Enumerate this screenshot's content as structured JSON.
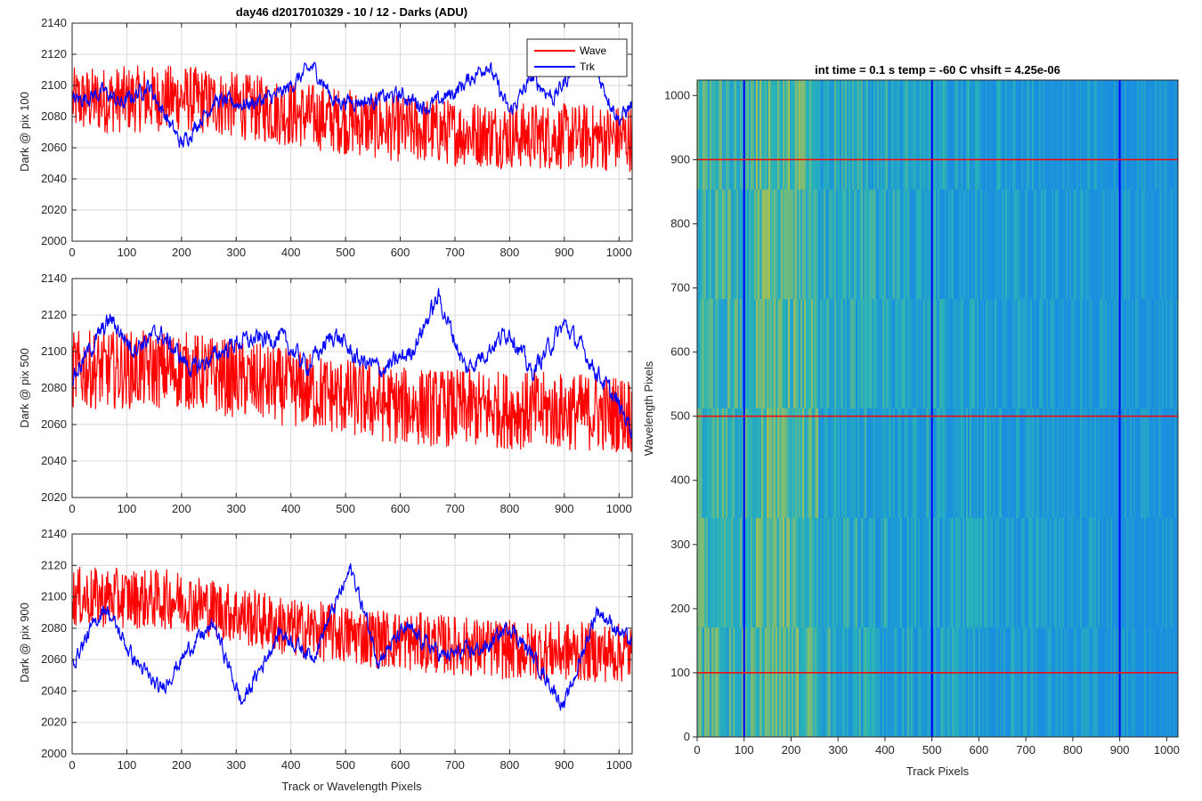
{
  "colors": {
    "wave": "#ff0000",
    "trk": "#0000ff",
    "axis": "#262626",
    "grid": "#d9d9d9",
    "heat_low": "#1a8fe0",
    "heat_mid": "#29b3b8",
    "heat_high": "#c8c23a"
  },
  "chart_data": [
    {
      "type": "line",
      "title": "day46 d2017010329 - 10 / 12 - Darks (ADU)",
      "xlabel": "",
      "ylabel": "Dark @ pix 100",
      "xlim": [
        0,
        1024
      ],
      "ylim": [
        2000,
        2140
      ],
      "xticks": [
        0,
        100,
        200,
        300,
        400,
        500,
        600,
        700,
        800,
        900,
        1000
      ],
      "yticks": [
        2000,
        2020,
        2040,
        2060,
        2080,
        2100,
        2120,
        2140
      ],
      "grid": true,
      "legend": {
        "placement": "top-right",
        "entries": [
          "Wave",
          "Trk"
        ]
      },
      "series": [
        {
          "name": "Wave",
          "color": "#ff0000",
          "noise": 18,
          "trend": [
            [
              0,
              2090
            ],
            [
              200,
              2092
            ],
            [
              400,
              2082
            ],
            [
              600,
              2072
            ],
            [
              800,
              2068
            ],
            [
              1024,
              2066
            ]
          ]
        },
        {
          "name": "Trk",
          "color": "#0000ff",
          "noise": 4,
          "trend": [
            [
              0,
              2090
            ],
            [
              60,
              2096
            ],
            [
              90,
              2088
            ],
            [
              140,
              2100
            ],
            [
              200,
              2062
            ],
            [
              260,
              2090
            ],
            [
              320,
              2088
            ],
            [
              380,
              2094
            ],
            [
              440,
              2112
            ],
            [
              480,
              2090
            ],
            [
              540,
              2090
            ],
            [
              600,
              2094
            ],
            [
              650,
              2086
            ],
            [
              700,
              2096
            ],
            [
              760,
              2114
            ],
            [
              800,
              2082
            ],
            [
              840,
              2105
            ],
            [
              880,
              2092
            ],
            [
              940,
              2122
            ],
            [
              1000,
              2078
            ],
            [
              1024,
              2088
            ]
          ]
        }
      ]
    },
    {
      "type": "line",
      "title": "",
      "xlabel": "",
      "ylabel": "Dark @ pix 500",
      "xlim": [
        0,
        1024
      ],
      "ylim": [
        2020,
        2140
      ],
      "xticks": [
        0,
        100,
        200,
        300,
        400,
        500,
        600,
        700,
        800,
        900,
        1000
      ],
      "yticks": [
        2020,
        2040,
        2060,
        2080,
        2100,
        2120,
        2140
      ],
      "grid": true,
      "series": [
        {
          "name": "Wave",
          "color": "#ff0000",
          "noise": 18,
          "trend": [
            [
              0,
              2090
            ],
            [
              200,
              2090
            ],
            [
              400,
              2080
            ],
            [
              600,
              2070
            ],
            [
              800,
              2068
            ],
            [
              1024,
              2066
            ]
          ]
        },
        {
          "name": "Trk",
          "color": "#0000ff",
          "noise": 4,
          "trend": [
            [
              0,
              2085
            ],
            [
              30,
              2100
            ],
            [
              70,
              2118
            ],
            [
              110,
              2102
            ],
            [
              160,
              2110
            ],
            [
              220,
              2090
            ],
            [
              300,
              2105
            ],
            [
              380,
              2108
            ],
            [
              430,
              2092
            ],
            [
              480,
              2110
            ],
            [
              520,
              2096
            ],
            [
              570,
              2090
            ],
            [
              620,
              2100
            ],
            [
              670,
              2130
            ],
            [
              720,
              2090
            ],
            [
              800,
              2112
            ],
            [
              840,
              2088
            ],
            [
              900,
              2115
            ],
            [
              940,
              2098
            ],
            [
              1000,
              2070
            ],
            [
              1024,
              2058
            ]
          ]
        }
      ]
    },
    {
      "type": "line",
      "title": "",
      "xlabel": "Track or Wavelength Pixels",
      "ylabel": "Dark @ pix 900",
      "xlim": [
        0,
        1024
      ],
      "ylim": [
        2000,
        2140
      ],
      "xticks": [
        0,
        100,
        200,
        300,
        400,
        500,
        600,
        700,
        800,
        900,
        1000
      ],
      "yticks": [
        2000,
        2020,
        2040,
        2060,
        2080,
        2100,
        2120,
        2140
      ],
      "grid": true,
      "series": [
        {
          "name": "Wave",
          "color": "#ff0000",
          "noise": 16,
          "trend": [
            [
              0,
              2100
            ],
            [
              200,
              2098
            ],
            [
              400,
              2080
            ],
            [
              600,
              2072
            ],
            [
              800,
              2066
            ],
            [
              1024,
              2064
            ]
          ]
        },
        {
          "name": "Trk",
          "color": "#0000ff",
          "noise": 4,
          "trend": [
            [
              0,
              2058
            ],
            [
              60,
              2094
            ],
            [
              110,
              2062
            ],
            [
              160,
              2040
            ],
            [
              220,
              2070
            ],
            [
              260,
              2082
            ],
            [
              310,
              2032
            ],
            [
              380,
              2078
            ],
            [
              440,
              2062
            ],
            [
              510,
              2118
            ],
            [
              560,
              2060
            ],
            [
              610,
              2080
            ],
            [
              680,
              2062
            ],
            [
              760,
              2068
            ],
            [
              800,
              2082
            ],
            [
              850,
              2058
            ],
            [
              900,
              2030
            ],
            [
              960,
              2092
            ],
            [
              1024,
              2070
            ]
          ]
        }
      ]
    },
    {
      "type": "heatmap",
      "title": "int time = 0.1 s    temp = -60 C   vhsift = 4.25e-06",
      "xlabel": "Track Pixels",
      "ylabel": "Wavelength Pixels",
      "xlim": [
        0,
        1024
      ],
      "ylim": [
        0,
        1024
      ],
      "xticks": [
        0,
        100,
        200,
        300,
        400,
        500,
        600,
        700,
        800,
        900,
        1000
      ],
      "yticks": [
        0,
        100,
        200,
        300,
        400,
        500,
        600,
        700,
        800,
        900,
        1000
      ],
      "grid": false,
      "vertical_markers": [
        100,
        500,
        900
      ],
      "horizontal_markers": [
        100,
        500,
        900
      ]
    }
  ]
}
